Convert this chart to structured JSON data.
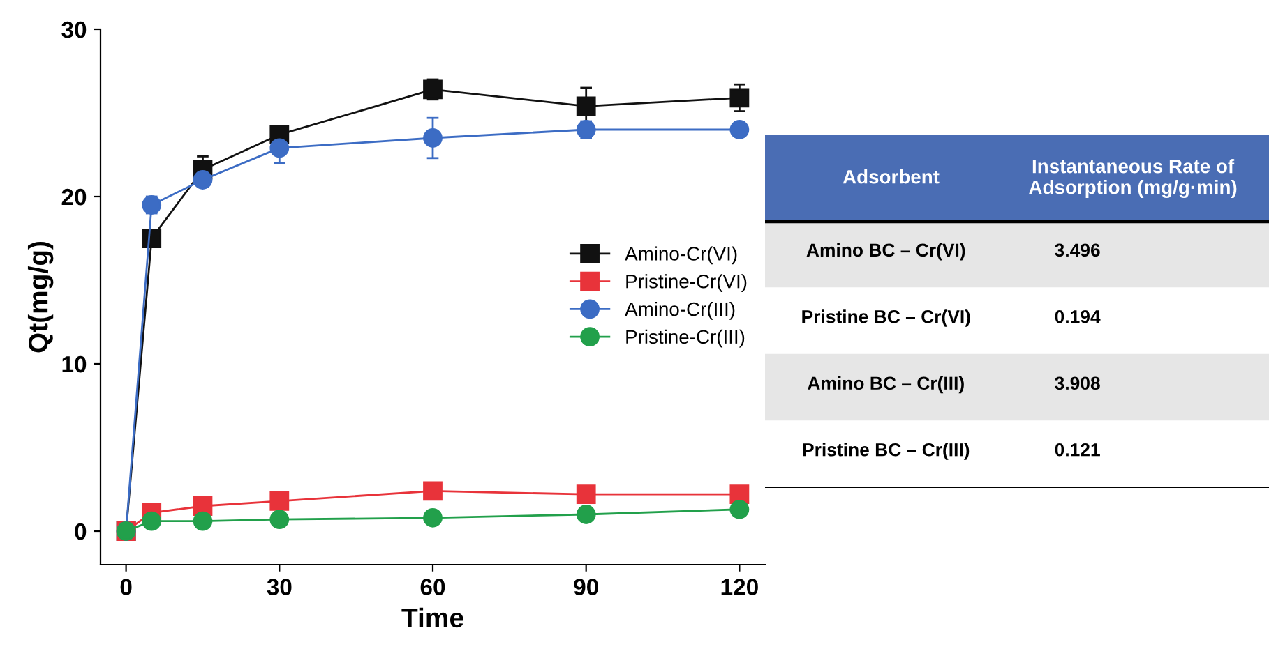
{
  "chart_data": [
    {
      "type": "line",
      "xlabel": "Time",
      "ylabel": "Qt(mg/g)",
      "x": [
        0,
        5,
        15,
        30,
        60,
        90,
        120
      ],
      "xlim": [
        -5,
        125
      ],
      "ylim": [
        -2,
        30
      ],
      "xticks": [
        0,
        30,
        60,
        90,
        120
      ],
      "yticks": [
        0,
        10,
        20,
        30
      ],
      "grid": false,
      "legend": "right",
      "line_style": "solid",
      "series": [
        {
          "name": "Amino-Cr(VI)",
          "color": "#111111",
          "marker": "square",
          "values": [
            0,
            17.5,
            21.6,
            23.7,
            26.4,
            25.4,
            25.9
          ],
          "errors": [
            null,
            null,
            0.8,
            0.3,
            0.6,
            1.1,
            0.8
          ]
        },
        {
          "name": "Pristine-Cr(VI)",
          "color": "#e8333a",
          "marker": "square",
          "values": [
            0,
            1.1,
            1.5,
            1.8,
            2.4,
            2.2,
            2.2
          ]
        },
        {
          "name": "Amino-Cr(III)",
          "color": "#3c6cc4",
          "marker": "circle",
          "values": [
            0,
            19.5,
            21.0,
            22.9,
            23.5,
            24.0,
            24.0
          ],
          "errors": [
            null,
            0.5,
            null,
            0.9,
            1.2,
            0.5,
            null
          ]
        },
        {
          "name": "Pristine-Cr(III)",
          "color": "#22a04b",
          "marker": "circle",
          "values": [
            0,
            0.6,
            0.6,
            0.7,
            0.8,
            1.0,
            1.3
          ]
        }
      ]
    },
    {
      "type": "other",
      "annotations": [
        "Adsorbent",
        "Instantaneous Rate of Adsorption (mg/g·min)"
      ],
      "categories": [
        "Amino BC – Cr(VI)",
        "Pristine BC – Cr(VI)",
        "Amino BC – Cr(III)",
        "Pristine BC – Cr(III)"
      ],
      "value_labels": [
        "3.496",
        "0.194",
        "3.908",
        "0.121"
      ],
      "colors": [
        "#e6e6e6",
        "#ffffff",
        "#e6e6e6",
        "#ffffff"
      ],
      "color": "#4a6db4"
    }
  ]
}
